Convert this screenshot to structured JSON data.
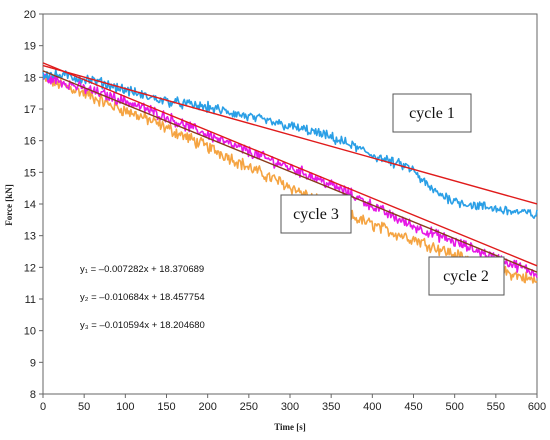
{
  "chart_data": {
    "type": "line",
    "xlabel": "Time [s]",
    "ylabel": "Force [kN]",
    "xlim": [
      0,
      600
    ],
    "ylim": [
      8,
      20
    ],
    "xticks": [
      0,
      50,
      100,
      150,
      200,
      250,
      300,
      350,
      400,
      450,
      500,
      550,
      600
    ],
    "yticks": [
      8,
      9,
      10,
      11,
      12,
      13,
      14,
      15,
      16,
      17,
      18,
      19,
      20
    ],
    "grid": false,
    "series": [
      {
        "name": "cycle 1",
        "color": "#2a9fe6",
        "x": [
          0,
          25,
          50,
          75,
          100,
          125,
          150,
          175,
          200,
          225,
          250,
          275,
          300,
          325,
          350,
          375,
          400,
          425,
          440,
          450,
          460,
          475,
          500,
          525,
          550,
          575,
          590,
          600
        ],
        "y": [
          18.1,
          18.05,
          17.95,
          17.8,
          17.6,
          17.4,
          17.25,
          17.15,
          17.05,
          16.9,
          16.75,
          16.6,
          16.45,
          16.3,
          16.1,
          15.85,
          15.55,
          15.3,
          15.2,
          15.05,
          14.75,
          14.4,
          14.1,
          13.95,
          13.85,
          13.75,
          13.7,
          13.65
        ]
      },
      {
        "name": "cycle 2",
        "color": "#f5a442",
        "x": [
          0,
          25,
          50,
          75,
          100,
          125,
          150,
          175,
          200,
          225,
          250,
          275,
          300,
          325,
          350,
          375,
          400,
          425,
          450,
          475,
          500,
          525,
          550,
          575,
          600
        ],
        "y": [
          17.95,
          17.75,
          17.5,
          17.2,
          16.95,
          16.7,
          16.4,
          16.1,
          15.8,
          15.5,
          15.15,
          14.85,
          14.55,
          14.2,
          13.9,
          13.6,
          13.35,
          13.1,
          12.9,
          12.65,
          12.4,
          12.15,
          11.95,
          11.75,
          11.55
        ]
      },
      {
        "name": "cycle 3",
        "color": "#e619e6",
        "x": [
          0,
          25,
          50,
          75,
          100,
          125,
          150,
          175,
          200,
          225,
          250,
          275,
          300,
          325,
          350,
          375,
          400,
          425,
          450,
          475,
          500,
          525,
          550,
          575,
          600
        ],
        "y": [
          18.0,
          17.85,
          17.65,
          17.45,
          17.25,
          17.0,
          16.75,
          16.45,
          16.2,
          15.9,
          15.65,
          15.4,
          15.15,
          14.9,
          14.6,
          14.3,
          13.95,
          13.6,
          13.3,
          13.05,
          12.8,
          12.55,
          12.3,
          12.05,
          11.8
        ]
      }
    ],
    "fits": [
      {
        "label": "y₁ = –0.007282x + 18.370689",
        "slope": -0.007282,
        "intercept": 18.370689,
        "color": "#e01b1b"
      },
      {
        "label": "y₂ = –0.010684x + 18.457754",
        "slope": -0.010684,
        "intercept": 18.457754,
        "color": "#e01b1b"
      },
      {
        "label": "y₃ = –0.010594x + 18.204680",
        "slope": -0.010594,
        "intercept": 18.20468,
        "color": "#8a3a1a"
      }
    ],
    "annotations": [
      "cycle 1",
      "cycle 3",
      "cycle 2"
    ]
  }
}
